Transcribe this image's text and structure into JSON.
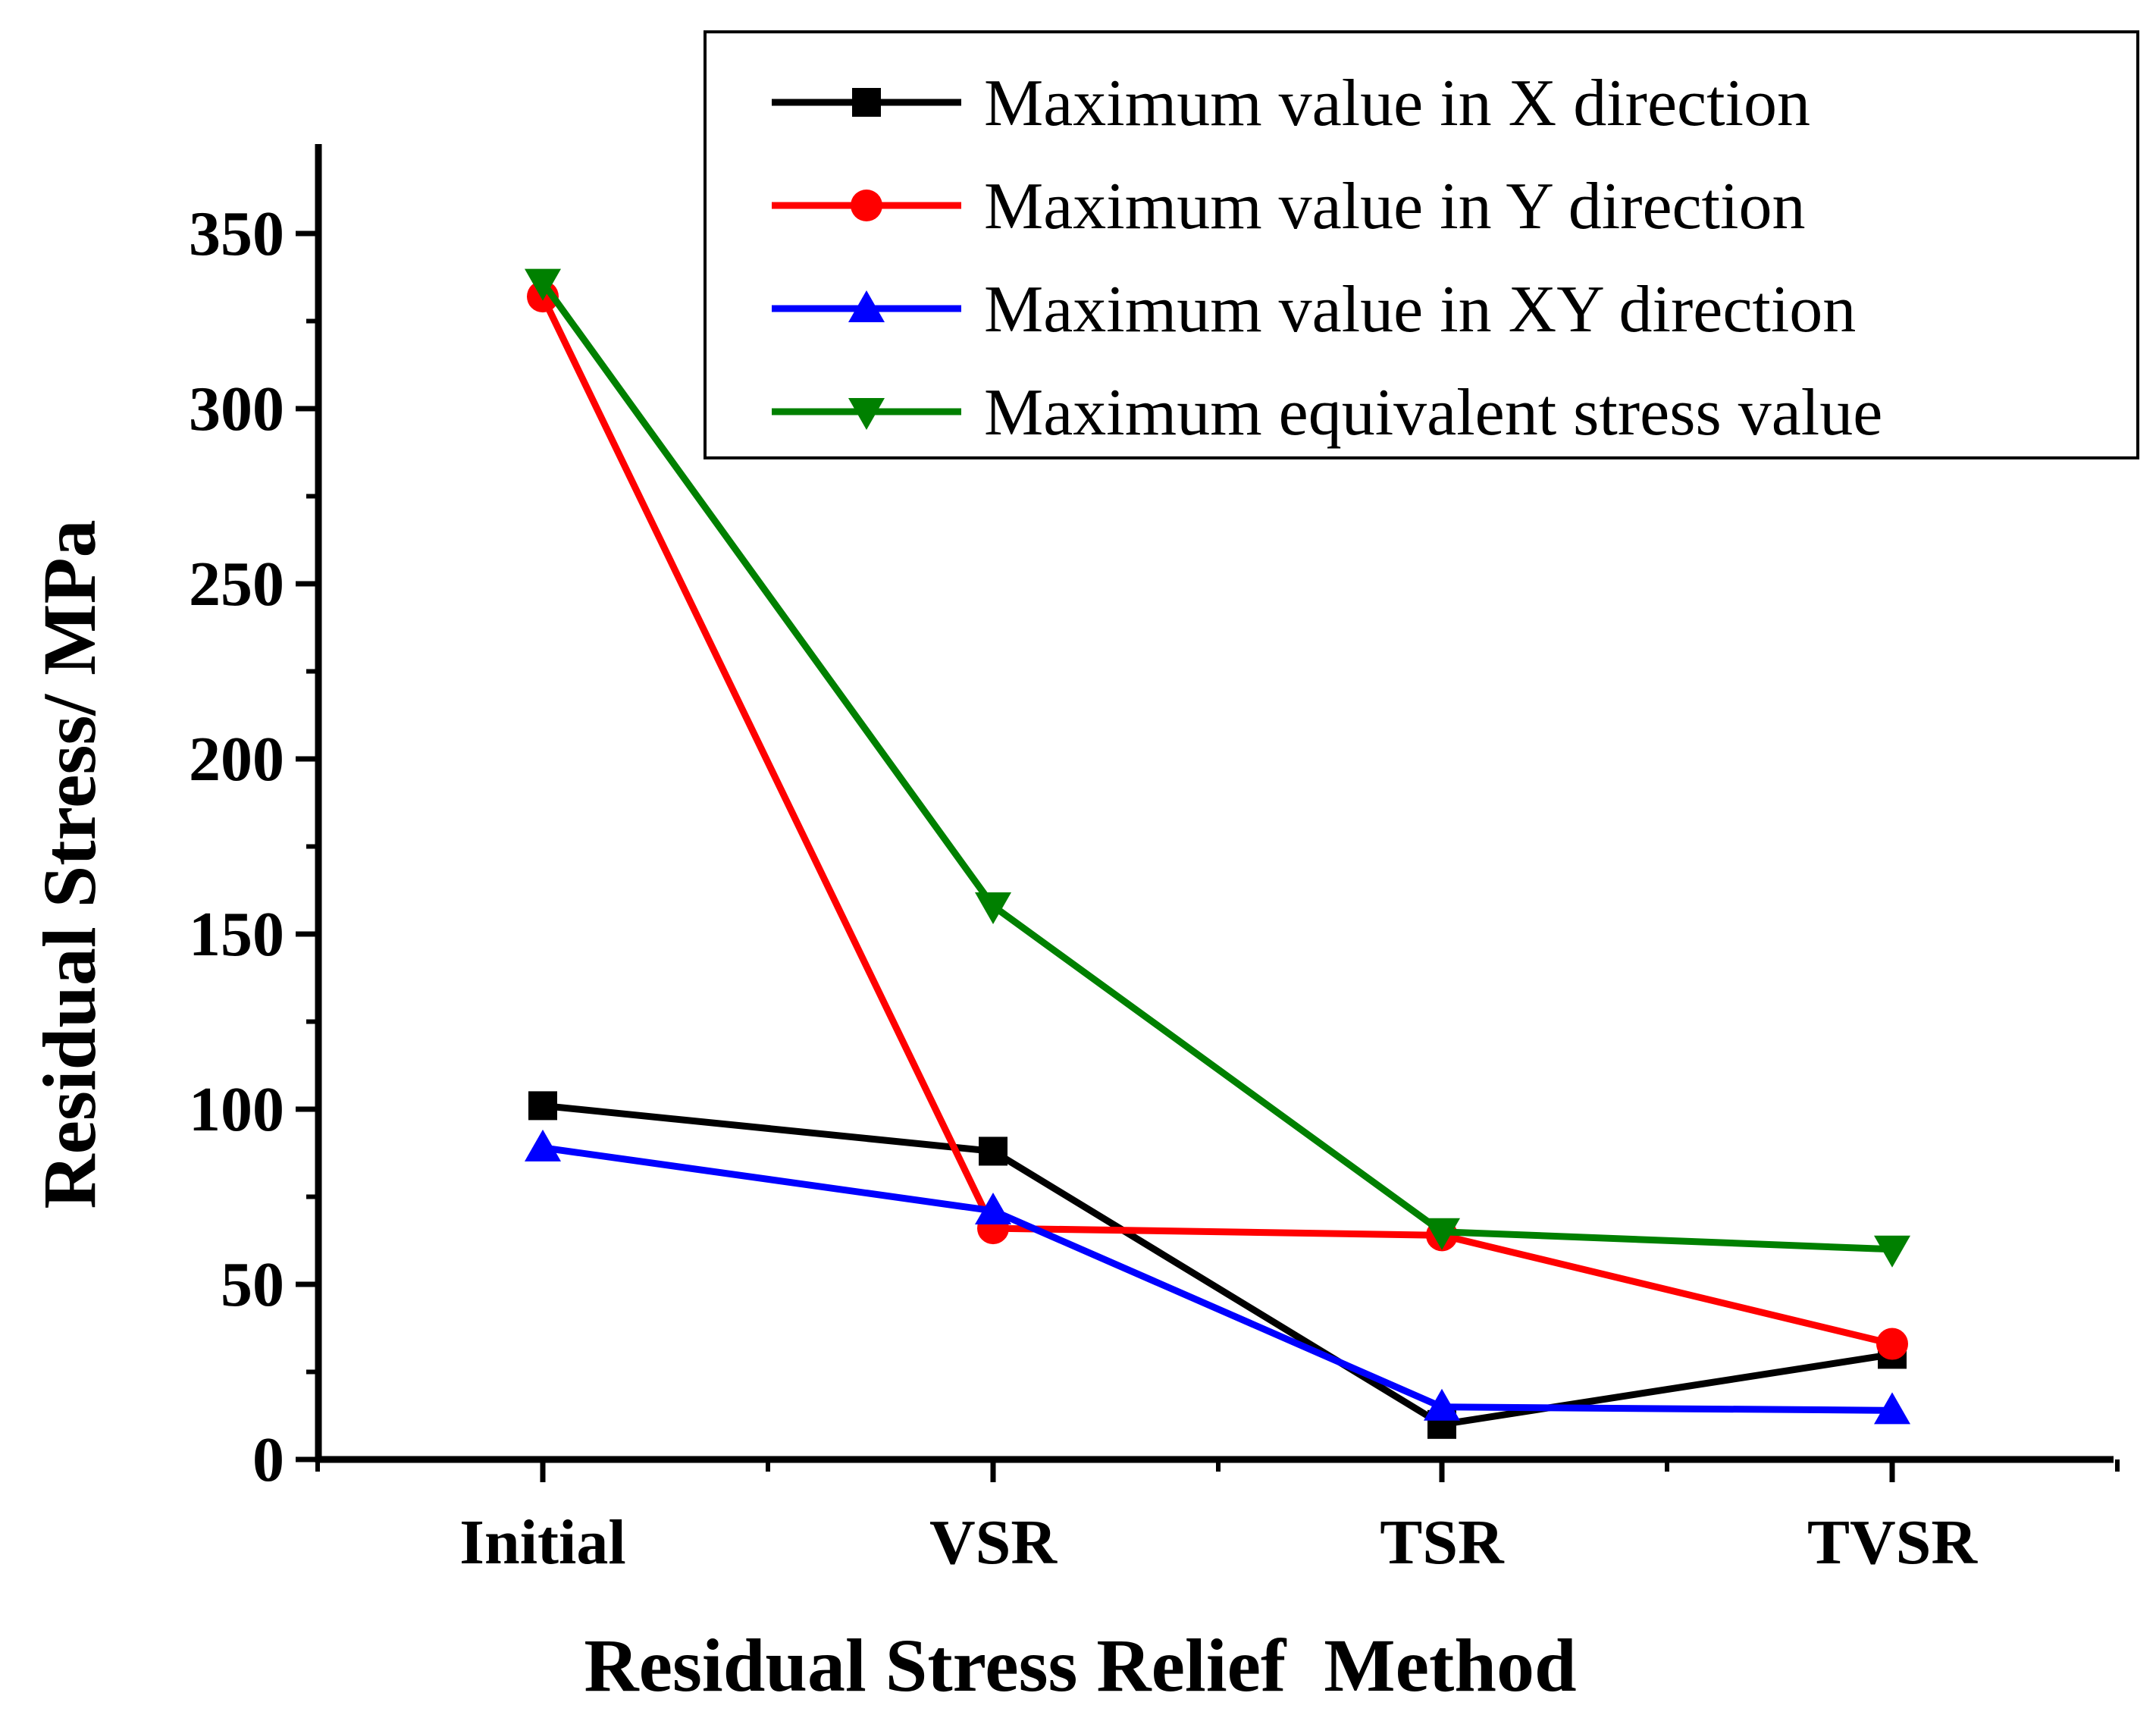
{
  "chart_data": {
    "type": "line",
    "title": "",
    "xlabel": "Residual Stress Relief  Method",
    "ylabel": "Residual Stress/ MPa",
    "categories": [
      "Initial",
      "VSR",
      "TSR",
      "TVSR"
    ],
    "ylim": [
      0,
      375
    ],
    "yticks": [
      0,
      50,
      100,
      150,
      200,
      250,
      300,
      350
    ],
    "legend_position": "top-right",
    "series": [
      {
        "name": "Maximum value in X direction",
        "color": "#000000",
        "marker": "square",
        "values": [
          101,
          88,
          10,
          30
        ]
      },
      {
        "name": "Maximum value in Y direction",
        "color": "#ff0000",
        "marker": "circle",
        "values": [
          332,
          66,
          64,
          33
        ]
      },
      {
        "name": "Maximum value in XY direction",
        "color": "#0000ff",
        "marker": "triangle-up",
        "values": [
          89,
          71,
          15,
          14
        ]
      },
      {
        "name": "Maximum equivalent stress value",
        "color": "#008000",
        "marker": "triangle-down",
        "values": [
          336,
          158,
          65,
          60
        ]
      }
    ]
  }
}
